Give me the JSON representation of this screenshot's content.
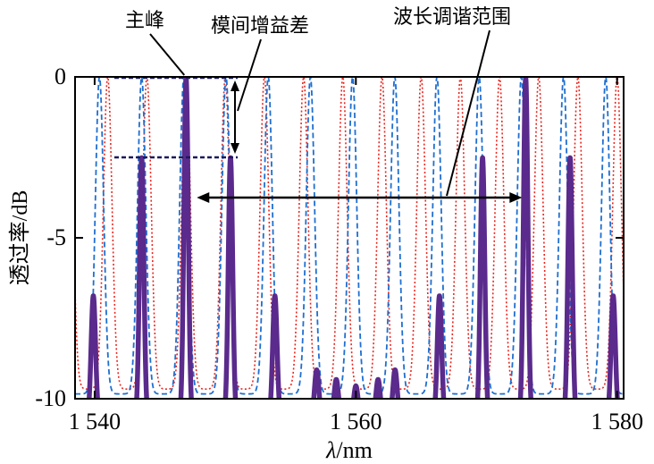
{
  "chart_data": {
    "type": "line",
    "title": "",
    "xlabel_italic": "λ",
    "xlabel_rest": "/nm",
    "ylabel": "透过率/dB",
    "xlim": [
      1538.5,
      1580.5
    ],
    "ylim": [
      -10,
      0
    ],
    "x_ticks": [
      {
        "value": 1540,
        "label": "1 540"
      },
      {
        "value": 1560,
        "label": "1 560"
      },
      {
        "value": 1580,
        "label": "1 580"
      }
    ],
    "y_ticks": [
      {
        "value": 0,
        "label": "0"
      },
      {
        "value": -5,
        "label": "-5"
      },
      {
        "value": -10,
        "label": "-10"
      }
    ],
    "grid": false,
    "series": [
      {
        "style": "dotted",
        "color": "#e8261f",
        "fsr": 3.0,
        "phase": 1541.0,
        "width": 0.52,
        "floor": -9.7,
        "peak": 0
      },
      {
        "style": "dashed",
        "color": "#1f6fd0",
        "fsr": 3.23,
        "phase": 1543.6,
        "width": 0.5,
        "floor": -9.85,
        "peak": 0
      },
      {
        "style": "solid",
        "color": "#5a2a8c",
        "peaks": [
          {
            "x": 1539.9,
            "y": -6.8
          },
          {
            "x": 1543.6,
            "y": -2.5
          },
          {
            "x": 1547.0,
            "y": 0
          },
          {
            "x": 1550.4,
            "y": -2.5
          },
          {
            "x": 1553.8,
            "y": -6.8
          },
          {
            "x": 1557.0,
            "y": -9.1
          },
          {
            "x": 1558.5,
            "y": -9.4
          },
          {
            "x": 1560.0,
            "y": -9.6
          },
          {
            "x": 1561.7,
            "y": -9.4
          },
          {
            "x": 1563.0,
            "y": -9.1
          },
          {
            "x": 1566.4,
            "y": -6.8
          },
          {
            "x": 1569.7,
            "y": -2.5
          },
          {
            "x": 1573.0,
            "y": 0
          },
          {
            "x": 1576.4,
            "y": -2.5
          },
          {
            "x": 1579.7,
            "y": -6.8
          }
        ]
      }
    ],
    "annotations": {
      "main_peak": "主峰",
      "mode_gain_diff": "模间增益差",
      "tuning_range": "波长调谐范围"
    },
    "tuning_range_x": [
      1547.0,
      1573.0
    ],
    "gain_diff_y": [
      0,
      -2.5
    ]
  }
}
